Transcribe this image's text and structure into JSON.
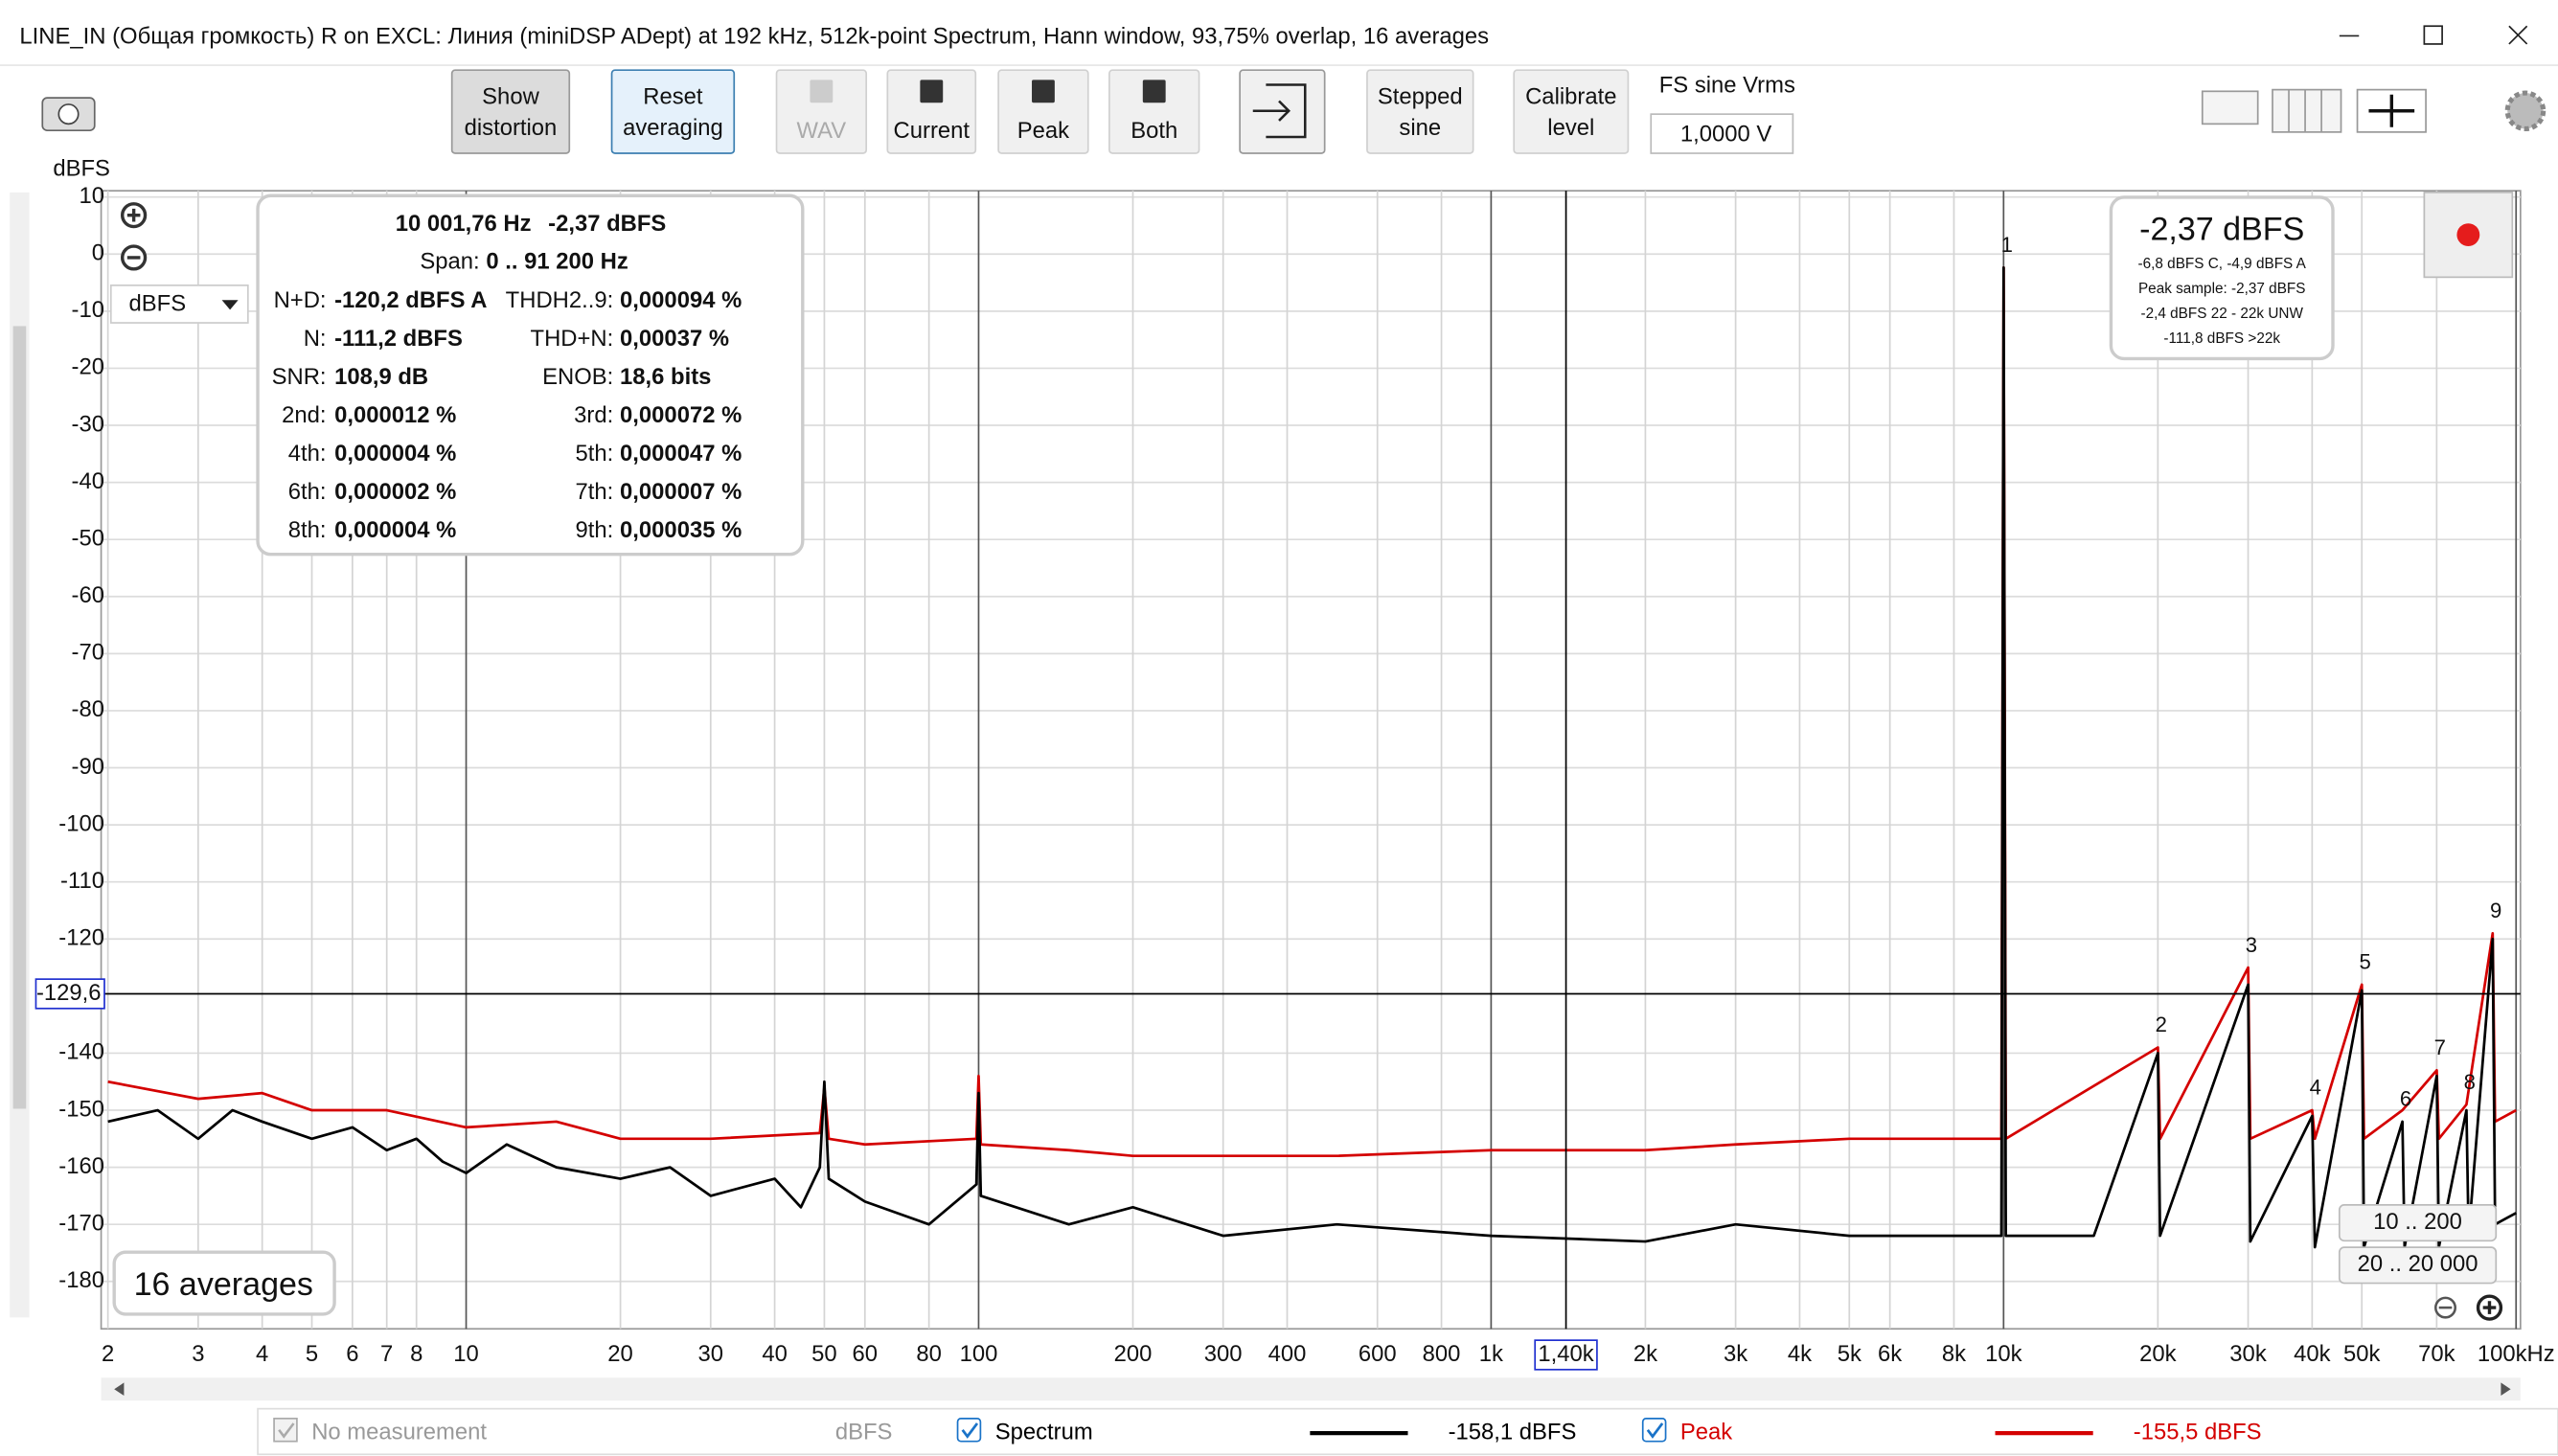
{
  "window": {
    "title": "LINE_IN (Общая громкость) R on EXCL: Линия (miniDSP ADept) at 192 kHz, 512k-point Spectrum, Hann window, 93,75% overlap, 16 averages"
  },
  "toolbar": {
    "buttons": [
      [
        "Show",
        "distortion"
      ],
      [
        "Reset",
        "averaging"
      ],
      [
        "WAV"
      ],
      [
        "Current"
      ],
      [
        "Peak"
      ],
      [
        "Both"
      ],
      [
        "Stepped",
        "sine"
      ],
      [
        "Calibrate",
        "level"
      ]
    ],
    "fs_label": "FS sine Vrms",
    "fs_value": "1,0000 V"
  },
  "unit_selector": "dBFS",
  "info_panel": {
    "frequency": "10 001,76 Hz",
    "level": "-2,37 dBFS",
    "span_label": "Span:",
    "span_value": "0 .. 91 200 Hz",
    "rows": [
      [
        "N+D:",
        "-120,2 dBFS A",
        "THDH2..9:",
        "0,000094 %"
      ],
      [
        "N:",
        "-111,2 dBFS",
        "THD+N:",
        "0,00037 %"
      ],
      [
        "SNR:",
        "108,9 dB",
        "ENOB:",
        "18,6 bits"
      ],
      [
        "2nd:",
        "0,000012 %",
        "3rd:",
        "0,000072 %"
      ],
      [
        "4th:",
        "0,000004 %",
        "5th:",
        "0,000047 %"
      ],
      [
        "6th:",
        "0,000002 %",
        "7th:",
        "0,000007 %"
      ],
      [
        "8th:",
        "0,000004 %",
        "9th:",
        "0,000035 %"
      ]
    ]
  },
  "level_box": {
    "main": "-2,37 dBFS",
    "lines": [
      "-6,8 dBFS C, -4,9 dBFS A",
      "Peak sample: -2,37 dBFS",
      "-2,4 dBFS 22 - 22k UNW",
      "-111,8 dBFS >22k"
    ]
  },
  "averages": "16 averages",
  "range_buttons": [
    "10 .. 200",
    "20 .. 20 000"
  ],
  "legend": {
    "no_measurement": "No measurement",
    "unit": "dBFS"
  },
  "chart_data": {
    "type": "line",
    "y_label": "dBFS",
    "log_x": true,
    "grid": true,
    "xlim": [
      1.94,
      102000
    ],
    "ylim": [
      -188.3,
      11.1
    ],
    "xticks": [
      2,
      3,
      4,
      5,
      6,
      7,
      8,
      10,
      20,
      30,
      40,
      50,
      60,
      80,
      100,
      200,
      300,
      400,
      600,
      800,
      {
        "value": 1000,
        "label": "1k"
      },
      {
        "value": 2000,
        "label": "2k"
      },
      {
        "value": 3000,
        "label": "3k"
      },
      {
        "value": 4000,
        "label": "4k"
      },
      {
        "value": 5000,
        "label": "5k"
      },
      {
        "value": 6000,
        "label": "6k"
      },
      {
        "value": 8000,
        "label": "8k"
      },
      {
        "value": 10000,
        "label": "10k"
      },
      {
        "value": 20000,
        "label": "20k"
      },
      {
        "value": 30000,
        "label": "30k"
      },
      {
        "value": 40000,
        "label": "40k"
      },
      {
        "value": 50000,
        "label": "50k"
      },
      {
        "value": 70000,
        "label": "70k"
      },
      {
        "value": 100000,
        "label": "100kHz"
      }
    ],
    "yticks": [
      10,
      0,
      -10,
      -20,
      -30,
      -40,
      -50,
      -60,
      -70,
      -80,
      -90,
      -100,
      -110,
      -120,
      -140,
      -150,
      -160,
      -170,
      -180
    ],
    "cursor": {
      "x": {
        "value": 1400,
        "label": "1,40k"
      },
      "y": {
        "value": -129.6,
        "label": "-129,6"
      }
    },
    "series": [
      {
        "name": "Spectrum",
        "color": "#000000",
        "readout": "-158,1 dBFS",
        "x": [
          2,
          2.5,
          3,
          3.5,
          4,
          5,
          6,
          7,
          8,
          9,
          10,
          12,
          15,
          20,
          25,
          30,
          40,
          45,
          49,
          50,
          51,
          60,
          80,
          99,
          100,
          101,
          150,
          200,
          300,
          500,
          1000,
          2000,
          3000,
          5000,
          9900,
          10001.76,
          10100,
          15000,
          20003.5,
          20200,
          30005,
          30300,
          40007,
          40500,
          50009,
          50500,
          60011,
          60600,
          70012,
          70700,
          80014,
          80800,
          90016,
          91000,
          100000
        ],
        "values": [
          -152,
          -150,
          -155,
          -150,
          -152,
          -155,
          -153,
          -157,
          -155,
          -159,
          -161,
          -156,
          -160,
          -162,
          -160,
          -165,
          -162,
          -167,
          -160,
          -145,
          -162,
          -166,
          -170,
          -163,
          -147,
          -165,
          -170,
          -167,
          -172,
          -170,
          -172,
          -173,
          -170,
          -172,
          -172,
          -2.37,
          -172,
          -172,
          -140,
          -172,
          -128,
          -173,
          -151,
          -174,
          -129,
          -174,
          -152,
          -174,
          -144,
          -174,
          -150,
          -172,
          -120,
          -170,
          -168
        ]
      },
      {
        "name": "Peak",
        "color": "#d40000",
        "readout": "-155,5 dBFS",
        "x": [
          2,
          3,
          4,
          5,
          7,
          10,
          15,
          20,
          30,
          49,
          50,
          51,
          60,
          99,
          100,
          101,
          150,
          200,
          500,
          1000,
          2000,
          3000,
          5000,
          9900,
          10001.76,
          10100,
          20003.5,
          20200,
          30005,
          30300,
          40007,
          40500,
          50009,
          50500,
          60011,
          70012,
          70700,
          80014,
          90016,
          91000,
          100000
        ],
        "values": [
          -145,
          -148,
          -147,
          -150,
          -150,
          -153,
          -152,
          -155,
          -155,
          -154,
          -146,
          -155,
          -156,
          -155,
          -144,
          -156,
          -157,
          -158,
          -158,
          -157,
          -157,
          -156,
          -155,
          -155,
          -2.37,
          -155,
          -139,
          -155,
          -125,
          -155,
          -150,
          -155,
          -128,
          -155,
          -150,
          -143,
          -155,
          -149,
          -119,
          -152,
          -150
        ]
      }
    ],
    "annotations": [
      {
        "label": "1",
        "x": 10001.76,
        "y": -2.37
      },
      {
        "label": "2",
        "x": 20003.5,
        "y": -139
      },
      {
        "label": "3",
        "x": 30005,
        "y": -125
      },
      {
        "label": "4",
        "x": 40007,
        "y": -150
      },
      {
        "label": "5",
        "x": 50009,
        "y": -128
      },
      {
        "label": "6",
        "x": 60011,
        "y": -152
      },
      {
        "label": "7",
        "x": 70012,
        "y": -143
      },
      {
        "label": "8",
        "x": 80014,
        "y": -149
      },
      {
        "label": "9",
        "x": 90016,
        "y": -119
      }
    ]
  }
}
